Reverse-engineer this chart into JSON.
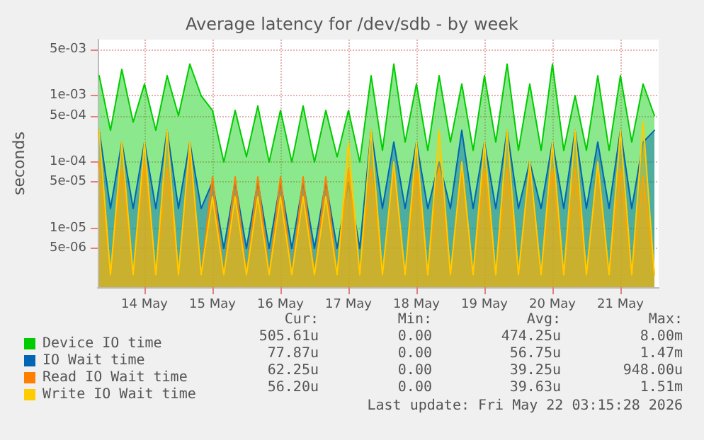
{
  "chart_data": {
    "type": "area",
    "title": "Average latency for /dev/sdb - by week",
    "ylabel": "seconds",
    "log": "y",
    "grid": true,
    "legend": "bottom left",
    "marker": "none",
    "line_style": "solid",
    "x": [
      "2026-05-13T08:00",
      "2026-05-13T12:00",
      "2026-05-13T16:00",
      "2026-05-13T20:00",
      "2026-05-14T00:00",
      "2026-05-14T04:00",
      "2026-05-14T08:00",
      "2026-05-14T12:00",
      "2026-05-14T16:00",
      "2026-05-14T20:00",
      "2026-05-15T00:00",
      "2026-05-15T04:00",
      "2026-05-15T08:00",
      "2026-05-15T12:00",
      "2026-05-15T16:00",
      "2026-05-15T20:00",
      "2026-05-16T00:00",
      "2026-05-16T04:00",
      "2026-05-16T08:00",
      "2026-05-16T12:00",
      "2026-05-16T16:00",
      "2026-05-16T20:00",
      "2026-05-17T00:00",
      "2026-05-17T04:00",
      "2026-05-17T08:00",
      "2026-05-17T12:00",
      "2026-05-17T16:00",
      "2026-05-17T20:00",
      "2026-05-18T00:00",
      "2026-05-18T04:00",
      "2026-05-18T08:00",
      "2026-05-18T12:00",
      "2026-05-18T16:00",
      "2026-05-18T20:00",
      "2026-05-19T00:00",
      "2026-05-19T04:00",
      "2026-05-19T08:00",
      "2026-05-19T12:00",
      "2026-05-19T16:00",
      "2026-05-19T20:00",
      "2026-05-20T00:00",
      "2026-05-20T04:00",
      "2026-05-20T08:00",
      "2026-05-20T12:00",
      "2026-05-20T16:00",
      "2026-05-20T20:00",
      "2026-05-21T00:00",
      "2026-05-21T04:00",
      "2026-05-21T08:00",
      "2026-05-21T12:00"
    ],
    "xlim": [
      "2026-05-13T07:30",
      "2026-05-21T13:30"
    ],
    "xticks": [
      {
        "value": "2026-05-14",
        "label": "14 May"
      },
      {
        "value": "2026-05-15",
        "label": "15 May"
      },
      {
        "value": "2026-05-16",
        "label": "16 May"
      },
      {
        "value": "2026-05-17",
        "label": "17 May"
      },
      {
        "value": "2026-05-18",
        "label": "18 May"
      },
      {
        "value": "2026-05-19",
        "label": "19 May"
      },
      {
        "value": "2026-05-20",
        "label": "20 May"
      },
      {
        "value": "2026-05-21",
        "label": "21 May"
      }
    ],
    "ylim": [
      1.3e-06,
      0.007
    ],
    "yticks": [
      {
        "value": 5e-06,
        "label": "5e-06"
      },
      {
        "value": 1e-05,
        "label": "1e-05"
      },
      {
        "value": 5e-05,
        "label": "5e-05"
      },
      {
        "value": 0.0001,
        "label": "1e-04"
      },
      {
        "value": 0.0005,
        "label": "5e-04"
      },
      {
        "value": 0.001,
        "label": "1e-03"
      },
      {
        "value": 0.005,
        "label": "5e-03"
      }
    ],
    "series": [
      {
        "name": "Device IO time",
        "color": "#00cc00",
        "values": [
          0.002,
          0.0003,
          0.0025,
          0.0004,
          0.0015,
          0.0003,
          0.002,
          0.0005,
          0.003,
          0.001,
          0.0006,
          0.0001,
          0.0006,
          0.00012,
          0.0007,
          0.0001,
          0.0006,
          0.0001,
          0.0007,
          0.0001,
          0.0006,
          0.00012,
          0.0006,
          0.0001,
          0.002,
          0.00015,
          0.003,
          0.0002,
          0.0015,
          0.00015,
          0.002,
          0.0002,
          0.0015,
          0.00015,
          0.002,
          0.0002,
          0.003,
          0.00015,
          0.0015,
          0.00015,
          0.003,
          0.00015,
          0.001,
          0.00015,
          0.002,
          0.00015,
          0.002,
          0.0002,
          0.0015,
          0.0005
        ]
      },
      {
        "name": "IO Wait time",
        "color": "#0066b3",
        "values": [
          0.0003,
          2e-05,
          0.0002,
          2e-05,
          0.0002,
          2e-05,
          0.0003,
          2e-05,
          0.0002,
          2e-05,
          5e-05,
          5e-06,
          5e-05,
          5e-06,
          5e-05,
          5e-06,
          5e-05,
          5e-06,
          5e-05,
          5e-06,
          5e-05,
          5e-06,
          5e-05,
          5e-06,
          0.0003,
          2e-05,
          0.0002,
          2e-05,
          0.0002,
          2e-05,
          0.0001,
          2e-05,
          0.0003,
          2e-05,
          0.0002,
          2e-05,
          0.0003,
          2e-05,
          0.0001,
          2e-05,
          0.0002,
          2e-05,
          0.0003,
          2e-05,
          0.0002,
          2e-05,
          0.0003,
          2e-05,
          0.0002,
          0.0003
        ]
      },
      {
        "name": "Read IO Wait time",
        "color": "#ff8000",
        "values": [
          0.0001,
          2e-06,
          8e-05,
          2e-06,
          0.0001,
          2e-06,
          8e-05,
          2e-06,
          0.00015,
          2e-06,
          6e-05,
          2e-06,
          6e-05,
          2e-06,
          6e-05,
          2e-06,
          6e-05,
          2e-06,
          6e-05,
          2e-06,
          6e-05,
          2e-06,
          8e-05,
          2e-06,
          8e-05,
          2e-06,
          8e-05,
          2e-06,
          8e-05,
          2e-06,
          8e-05,
          2e-06,
          8e-05,
          2e-06,
          8e-05,
          2e-06,
          8e-05,
          2e-06,
          8e-05,
          2e-06,
          8e-05,
          2e-06,
          8e-05,
          2e-06,
          8e-05,
          2e-06,
          8e-05,
          2e-06,
          6e-05,
          2e-06
        ]
      },
      {
        "name": "Write IO Wait time",
        "color": "#ffcc00",
        "values": [
          0.0003,
          2e-06,
          0.0002,
          2e-06,
          0.0002,
          2e-06,
          0.0003,
          2e-06,
          0.0002,
          2e-06,
          3e-05,
          2e-06,
          3e-05,
          2e-06,
          3e-05,
          2e-06,
          3e-05,
          2e-06,
          3e-05,
          2e-06,
          3e-05,
          2e-06,
          0.0002,
          2e-06,
          0.0003,
          2e-06,
          0.0001,
          2e-06,
          0.0002,
          2e-06,
          0.0003,
          2e-06,
          0.0001,
          2e-06,
          0.0002,
          2e-06,
          0.0003,
          2e-06,
          0.0001,
          2e-06,
          0.0002,
          2e-06,
          0.0003,
          2e-06,
          0.0001,
          2e-06,
          0.0003,
          2e-06,
          0.0004,
          2e-06
        ]
      }
    ],
    "annotations": [
      "Cur:",
      "Min:",
      "Avg:",
      "Max:",
      "505.61u",
      "0.00",
      "474.25u",
      "8.00m",
      "77.87u",
      "0.00",
      "56.75u",
      "1.47m",
      "62.25u",
      "0.00",
      "39.25u",
      "948.00u",
      "56.20u",
      "0.00",
      "39.63u",
      "1.51m",
      "Last update: Fri May 22 03:15:28 2026"
    ]
  }
}
